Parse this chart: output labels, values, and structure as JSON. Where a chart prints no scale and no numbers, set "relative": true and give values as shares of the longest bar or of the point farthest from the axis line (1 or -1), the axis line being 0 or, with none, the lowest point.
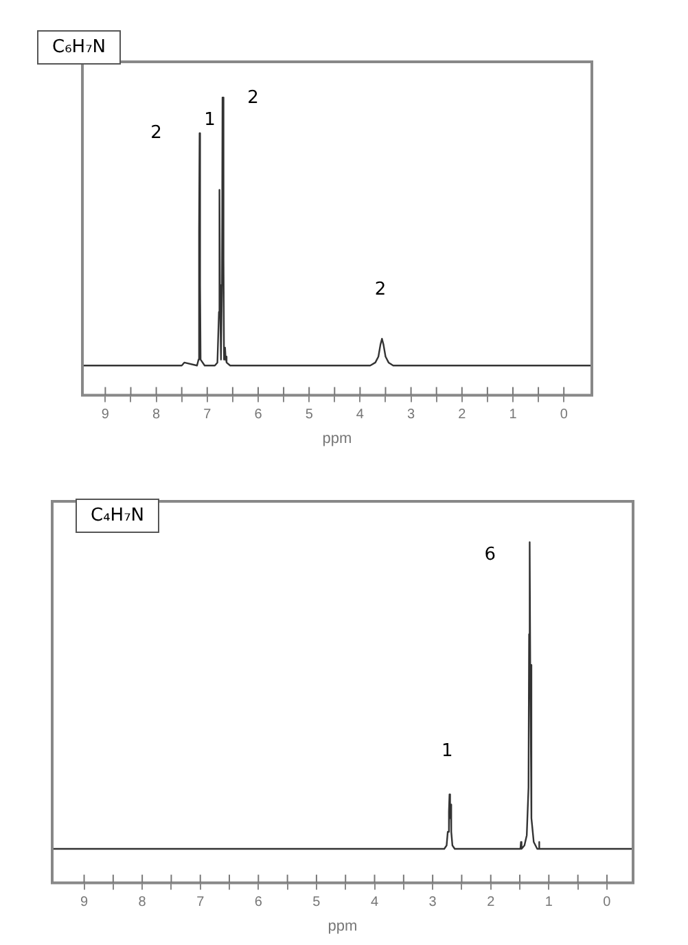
{
  "chart_data": [
    {
      "type": "line",
      "title": "C₆H₇N",
      "xlabel": "ppm",
      "relative": true,
      "color": "#333333",
      "grid": false,
      "legend": false,
      "marker": "none",
      "x": [
        9.45,
        7.5,
        7.45,
        7.2,
        7.17,
        7.16,
        7.15,
        7.14,
        7.13,
        7.05,
        6.95,
        6.85,
        6.8,
        6.77,
        6.76,
        6.75,
        6.73,
        6.71,
        6.7,
        6.68,
        6.67,
        6.65,
        6.64,
        6.62,
        6.55,
        3.8,
        3.7,
        3.64,
        3.6,
        3.57,
        3.54,
        3.5,
        3.44,
        3.35,
        -0.55
      ],
      "values": [
        0.1,
        0.1,
        0.11,
        0.1,
        0.12,
        0.55,
        0.88,
        0.37,
        0.12,
        0.1,
        0.1,
        0.1,
        0.11,
        0.28,
        0.69,
        0.37,
        0.12,
        0.37,
        1,
        0.46,
        0.12,
        0.16,
        0.13,
        0.11,
        0.1,
        0.1,
        0.11,
        0.13,
        0.17,
        0.19,
        0.17,
        0.13,
        0.11,
        0.1,
        0.1
      ],
      "xlim": [
        9.45,
        -0.55
      ],
      "xticks": [
        9,
        {
          "value": 8.5,
          "label": null
        },
        8,
        {
          "value": 7.5,
          "label": null
        },
        7,
        {
          "value": 6.5,
          "label": null
        },
        6,
        {
          "value": 5.5,
          "label": null
        },
        5,
        {
          "value": 4.5,
          "label": null
        },
        4,
        {
          "value": 3.5,
          "label": null
        },
        3,
        {
          "value": 2.5,
          "label": null
        },
        2,
        {
          "value": 1.5,
          "label": null
        },
        1,
        {
          "value": 0.5,
          "label": null
        },
        0
      ],
      "annotations": [
        "2",
        "1",
        "2",
        "2"
      ]
    },
    {
      "type": "line",
      "title": "C₄H₇N",
      "xlabel": "ppm",
      "relative": true,
      "color": "#333333",
      "grid": false,
      "legend": false,
      "marker": "none",
      "x": [
        9.55,
        2.8,
        2.76,
        2.74,
        2.72,
        2.71,
        2.7,
        2.69,
        2.68,
        2.66,
        2.62,
        1.55,
        1.49,
        1.48,
        1.47,
        1.42,
        1.38,
        1.35,
        1.34,
        1.33,
        1.32,
        1.3,
        1.26,
        1.2,
        1.18,
        1.17,
        1.16,
        1.1,
        -0.45
      ],
      "values": [
        0.1,
        0.1,
        0.11,
        0.15,
        0.21,
        0.26,
        0.19,
        0.23,
        0.15,
        0.11,
        0.1,
        0.1,
        0.1,
        0.12,
        0.1,
        0.11,
        0.14,
        0.28,
        0.73,
        1,
        0.64,
        0.19,
        0.12,
        0.1,
        0.1,
        0.12,
        0.1,
        0.1,
        0.1
      ],
      "xlim": [
        9.55,
        -0.45
      ],
      "xticks": [
        9,
        {
          "value": 8.5,
          "label": null
        },
        8,
        {
          "value": 7.5,
          "label": null
        },
        7,
        {
          "value": 6.5,
          "label": null
        },
        6,
        {
          "value": 5.5,
          "label": null
        },
        5,
        {
          "value": 4.5,
          "label": null
        },
        4,
        {
          "value": 3.5,
          "label": null
        },
        3,
        {
          "value": 2.5,
          "label": null
        },
        2,
        {
          "value": 1.5,
          "label": null
        },
        1,
        {
          "value": 0.5,
          "label": null
        },
        0
      ],
      "annotations": [
        "6",
        "1"
      ]
    }
  ]
}
